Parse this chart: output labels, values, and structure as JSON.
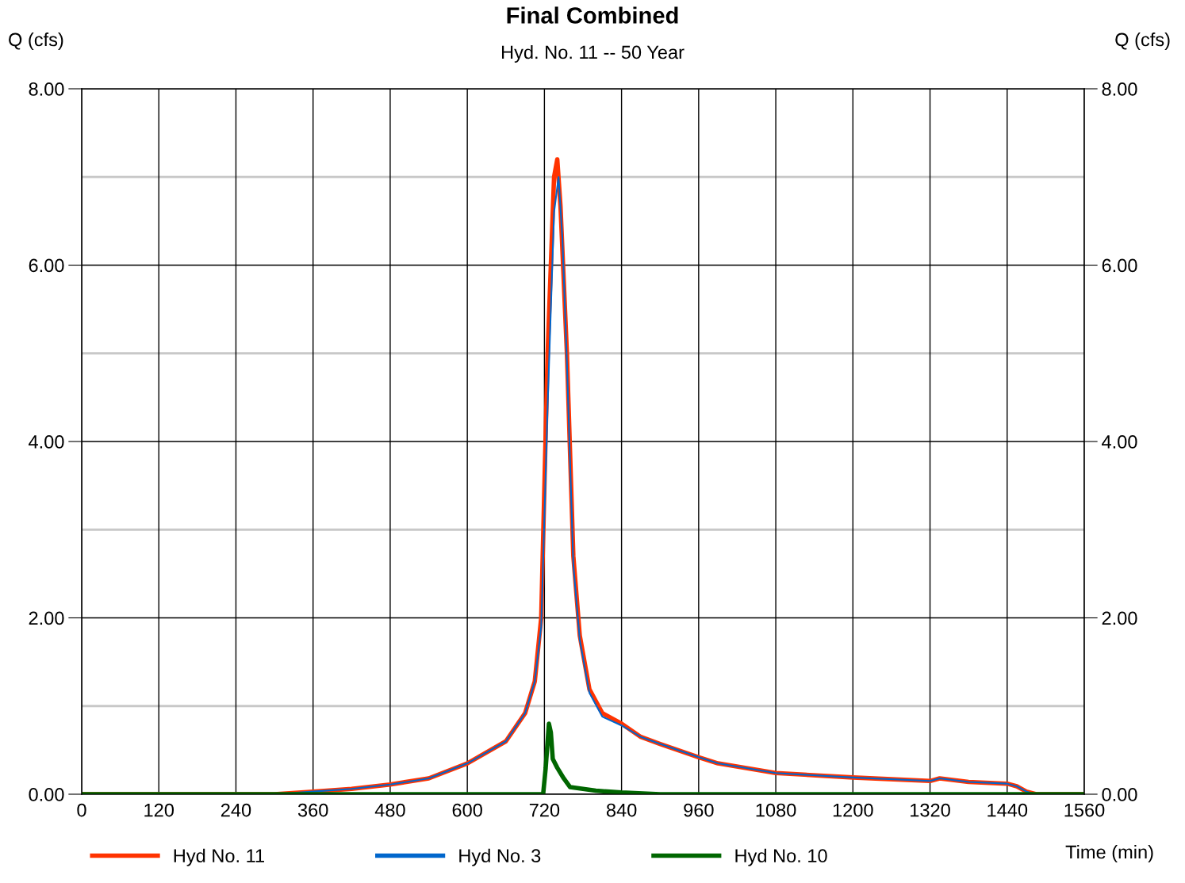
{
  "chart_data": {
    "type": "line",
    "title": "Final Combined",
    "subtitle": "Hyd. No. 11 -- 50 Year",
    "xlabel": "Time (min)",
    "ylabel": "Q (cfs)",
    "y2label": "Q (cfs)",
    "xlim": [
      0,
      1560
    ],
    "xticks": [
      0,
      120,
      240,
      360,
      480,
      600,
      720,
      840,
      960,
      1080,
      1200,
      1320,
      1440,
      1560
    ],
    "ylim": [
      0,
      8
    ],
    "yticks": [
      {
        "value": 0,
        "label": "0.00"
      },
      {
        "value": 1,
        "label": null
      },
      {
        "value": 2,
        "label": "2.00"
      },
      {
        "value": 3,
        "label": null
      },
      {
        "value": 4,
        "label": "4.00"
      },
      {
        "value": 5,
        "label": null
      },
      {
        "value": 6,
        "label": "6.00"
      },
      {
        "value": 7,
        "label": null
      },
      {
        "value": 8,
        "label": "8.00"
      }
    ],
    "y2lim": [
      0,
      8
    ],
    "y2ticks": [
      {
        "value": 0,
        "label": "0.00"
      },
      {
        "value": 2,
        "label": "2.00"
      },
      {
        "value": 4,
        "label": "4.00"
      },
      {
        "value": 6,
        "label": "6.00"
      },
      {
        "value": 8,
        "label": "8.00"
      }
    ],
    "grid": true,
    "legend": "bottom",
    "marker": "none",
    "line_style": "solid",
    "series": [
      {
        "name": "Hyd No. 11",
        "color": "#ff3300",
        "x": [
          0,
          300,
          360,
          420,
          480,
          540,
          600,
          660,
          690,
          705,
          715,
          725,
          735,
          740,
          745,
          755,
          765,
          775,
          790,
          810,
          840,
          870,
          900,
          960,
          990,
          1080,
          1200,
          1320,
          1335,
          1380,
          1440,
          1455,
          1470,
          1485,
          1560
        ],
        "values": [
          0,
          0,
          0.03,
          0.06,
          0.11,
          0.18,
          0.35,
          0.6,
          0.92,
          1.28,
          2.0,
          5.0,
          7.0,
          7.2,
          6.67,
          5.0,
          2.7,
          1.8,
          1.19,
          0.92,
          0.8,
          0.65,
          0.57,
          0.42,
          0.35,
          0.24,
          0.19,
          0.15,
          0.18,
          0.14,
          0.12,
          0.09,
          0.03,
          0,
          0
        ]
      },
      {
        "name": "Hyd No. 3",
        "color": "#0066cc",
        "x": [
          0,
          300,
          360,
          420,
          480,
          540,
          600,
          660,
          690,
          705,
          715,
          725,
          735,
          742,
          748,
          755,
          765,
          775,
          790,
          810,
          840,
          870,
          900,
          960,
          990,
          1080,
          1200,
          1320,
          1335,
          1380,
          1440,
          1455,
          1470,
          1485,
          1560
        ],
        "values": [
          0,
          0,
          0.03,
          0.06,
          0.11,
          0.18,
          0.35,
          0.6,
          0.92,
          1.28,
          1.9,
          4.4,
          6.6,
          7.0,
          6.3,
          4.9,
          2.6,
          1.75,
          1.15,
          0.88,
          0.78,
          0.65,
          0.57,
          0.42,
          0.35,
          0.24,
          0.19,
          0.15,
          0.18,
          0.14,
          0.12,
          0.09,
          0.03,
          0,
          0
        ]
      },
      {
        "name": "Hyd No. 10",
        "color": "#006600",
        "x": [
          0,
          718,
          722,
          727,
          730,
          733,
          740,
          750,
          760,
          800,
          840,
          900,
          1560
        ],
        "values": [
          0,
          0,
          0.3,
          0.8,
          0.7,
          0.4,
          0.3,
          0.18,
          0.08,
          0.04,
          0.02,
          0,
          0
        ]
      }
    ]
  }
}
